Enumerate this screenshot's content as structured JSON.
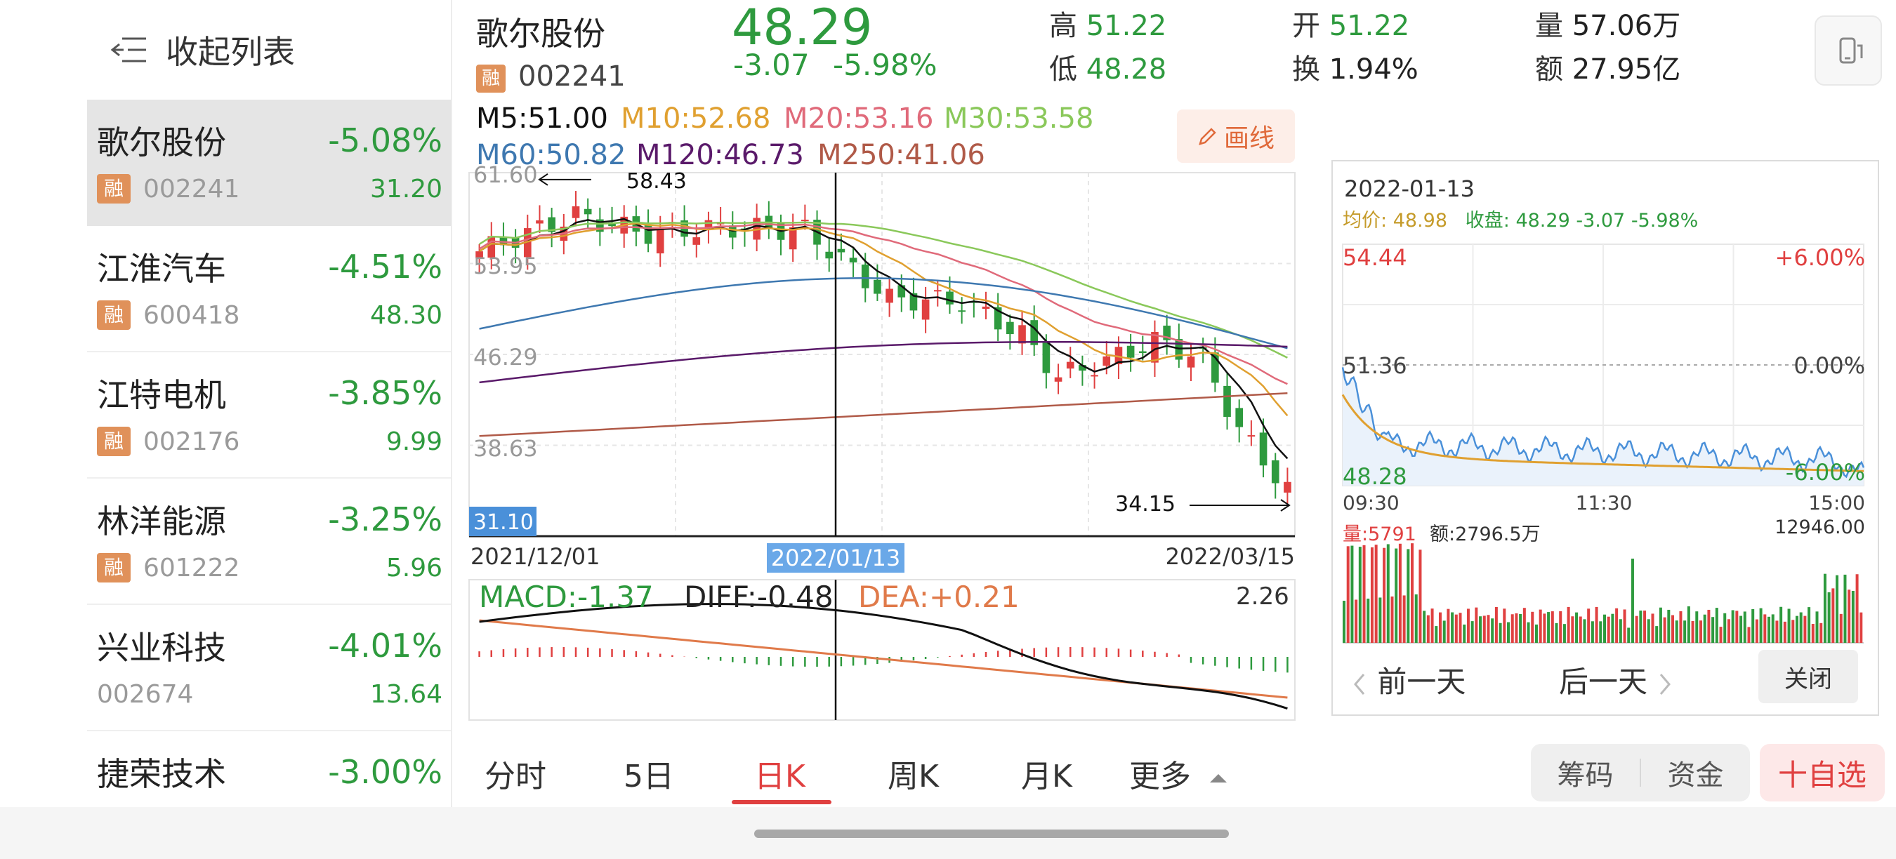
{
  "sidebar": {
    "collapse_label": "收起列表",
    "items": [
      {
        "name": "歌尔股份",
        "pct": "-5.08%",
        "badge": "融",
        "code": "002241",
        "value": "31.20",
        "active": true
      },
      {
        "name": "江淮汽车",
        "pct": "-4.51%",
        "badge": "融",
        "code": "600418",
        "value": "48.30"
      },
      {
        "name": "江特电机",
        "pct": "-3.85%",
        "badge": "融",
        "code": "002176",
        "value": "9.99"
      },
      {
        "name": "林洋能源",
        "pct": "-3.25%",
        "badge": "融",
        "code": "601222",
        "value": "5.96"
      },
      {
        "name": "兴业科技",
        "pct": "-4.01%",
        "badge": "",
        "code": "002674",
        "value": "13.64"
      },
      {
        "name": "捷荣技术",
        "pct": "-3.00%",
        "badge": "",
        "code": "",
        "value": ""
      }
    ]
  },
  "header": {
    "name": "歌尔股份",
    "badge": "融",
    "code": "002241",
    "price": "48.29",
    "change": "-3.07",
    "change_pct": "-5.98%",
    "high_label": "高",
    "high": "51.22",
    "low_label": "低",
    "low": "48.28",
    "open_label": "开",
    "open": "51.22",
    "turnover_label": "换",
    "turnover": "1.94%",
    "volume_label": "量",
    "volume": "57.06万",
    "amount_label": "额",
    "amount": "27.95亿"
  },
  "ma_legend": {
    "m5": "M5:51.00",
    "m10": "M10:52.68",
    "m20": "M20:53.16",
    "m30": "M30:53.58",
    "m60": "M60:50.82",
    "m120": "M120:46.73",
    "m250": "M250:41.06",
    "draw_button": "画线"
  },
  "kline": {
    "y_ticks": [
      "61.60",
      "53.95",
      "46.29",
      "38.63",
      "31.10"
    ],
    "high_marker": "58.43",
    "low_marker": "34.15",
    "start_date": "2021/12/01",
    "cursor_date": "2022/01/13",
    "end_date": "2022/03/15"
  },
  "macd": {
    "macd": "MACD:-1.37",
    "diff": "DIFF:-0.48",
    "dea": "DEA:+0.21",
    "max": "2.26"
  },
  "tabs": [
    "分时",
    "5日",
    "日K",
    "周K",
    "月K",
    "更多"
  ],
  "active_tab": "日K",
  "detail": {
    "date": "2022-01-13",
    "avg_label": "均价:",
    "avg": "48.98",
    "close_label": "收盘:",
    "close": "48.29",
    "close_chg": "-3.07",
    "close_pct": "-5.98%",
    "y_top": "54.44",
    "y_mid": "51.36",
    "y_bot": "48.28",
    "pct_top": "+6.00%",
    "pct_mid": "0.00%",
    "pct_bot": "-6.00%",
    "t_start": "09:30",
    "t_mid": "11:30",
    "t_end": "15:00",
    "vol_label": "量:5791",
    "amt_label": "额:2796.5万",
    "vol_max": "12946.00",
    "prev": "前一天",
    "next": "后一天",
    "close_btn": "关闭"
  },
  "bottom": {
    "chips": "筹码",
    "funds": "资金",
    "add": "十自选"
  },
  "colors": {
    "down": "#2e9a3e",
    "up": "#e04040",
    "m5": "#111111",
    "m10": "#e0a030",
    "m20": "#e06a7a",
    "m30": "#8ac85a",
    "m60": "#3e78b0",
    "m120": "#5a1a6a",
    "m250": "#b05a48"
  }
}
